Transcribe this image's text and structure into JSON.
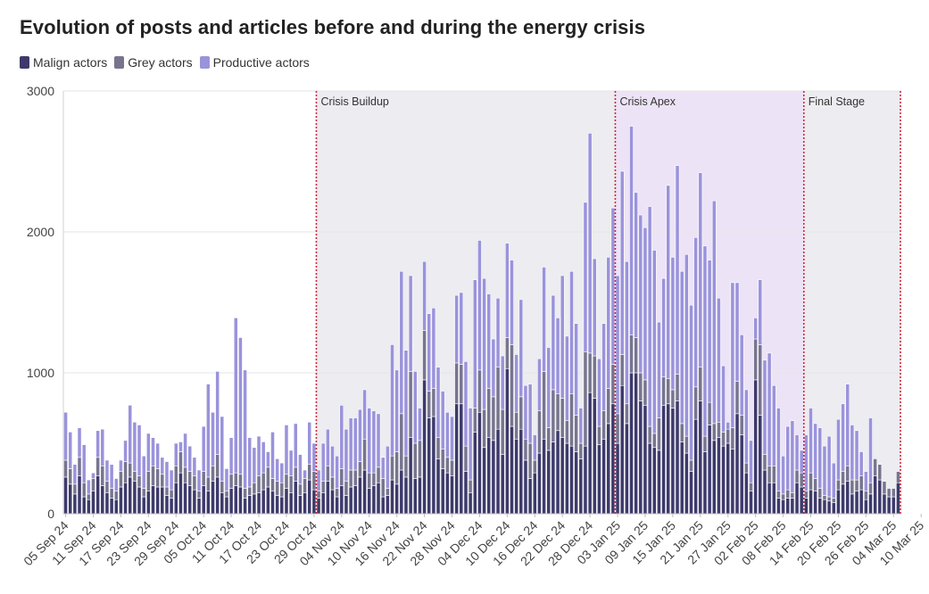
{
  "title": "Evolution of posts and articles before and during the energy crisis",
  "colors": {
    "malign": "#3d3a6b",
    "grey": "#77758e",
    "productive": "#9a93db",
    "phase_shade": "#ececf1",
    "apex_shade": "#ede3f6",
    "phase_line": "#d0293a",
    "grid": "#e6e6e6"
  },
  "chart_data": {
    "type": "bar",
    "stacked": true,
    "title": "Evolution of posts and articles before and during the energy crisis",
    "xlabel": "",
    "ylabel": "",
    "ylim": [
      0,
      3000
    ],
    "yticks": [
      "0",
      "1000",
      "2000",
      "3000"
    ],
    "grid": true,
    "legend": "top-left",
    "x_start": "2024-09-05",
    "x_tick_labels": [
      "05 Sep 24",
      "11 Sep 24",
      "17 Sep 24",
      "23 Sep 24",
      "29 Sep 24",
      "05 Oct 24",
      "11 Oct 24",
      "17 Oct 24",
      "23 Oct 24",
      "29 Oct 24",
      "04 Nov 24",
      "10 Nov 24",
      "16 Nov 24",
      "22 Nov 24",
      "28 Nov 24",
      "04 Dec 24",
      "10 Dec 24",
      "16 Dec 24",
      "22 Dec 24",
      "28 Dec 24",
      "03 Jan 25",
      "09 Jan 25",
      "15 Jan 25",
      "21 Jan 25",
      "27 Jan 25",
      "02 Feb 25",
      "08 Feb 25",
      "14 Feb 25",
      "20 Feb 25",
      "26 Feb 25",
      "04 Mar 25",
      "10 Mar 25"
    ],
    "phases": [
      {
        "label": "Crisis Buildup",
        "start": "30 Oct 24",
        "end": "03 Jan 25"
      },
      {
        "label": "Crisis Apex",
        "start": "03 Jan 25",
        "end": "13 Feb 25"
      },
      {
        "label": "Final Stage",
        "start": "13 Feb 25",
        "end": "10 Mar 25"
      }
    ],
    "series": [
      {
        "name": "Malign actors",
        "values": [
          260,
          210,
          140,
          270,
          120,
          100,
          160,
          270,
          200,
          150,
          110,
          100,
          190,
          220,
          260,
          230,
          190,
          120,
          160,
          200,
          190,
          190,
          130,
          110,
          220,
          290,
          220,
          200,
          170,
          110,
          200,
          160,
          230,
          260,
          150,
          120,
          180,
          200,
          190,
          110,
          130,
          140,
          150,
          170,
          190,
          160,
          130,
          120,
          180,
          150,
          230,
          130,
          150,
          240,
          170,
          110,
          150,
          230,
          170,
          120,
          200,
          130,
          190,
          200,
          260,
          310,
          180,
          200,
          220,
          120,
          130,
          240,
          210,
          310,
          260,
          540,
          250,
          260,
          950,
          680,
          690,
          390,
          320,
          290,
          270,
          780,
          780,
          300,
          150,
          580,
          720,
          470,
          540,
          520,
          600,
          420,
          1030,
          620,
          530,
          600,
          380,
          250,
          290,
          430,
          530,
          450,
          510,
          590,
          540,
          500,
          480,
          440,
          390,
          480,
          860,
          820,
          490,
          530,
          640,
          780,
          500,
          910,
          640,
          1000,
          1000,
          800,
          770,
          500,
          470,
          450,
          770,
          780,
          750,
          800,
          510,
          430,
          300,
          670,
          800,
          440,
          630,
          520,
          540,
          480,
          500,
          460,
          710,
          560,
          290,
          160,
          950,
          700,
          310,
          220,
          220,
          110,
          100,
          110,
          110,
          220,
          190,
          110,
          170,
          160,
          110,
          100,
          90,
          80,
          170,
          210,
          230,
          140,
          160,
          170,
          100,
          140,
          270,
          240,
          140,
          120,
          120,
          220
        ]
      },
      {
        "name": "Grey actors",
        "values": [
          120,
          110,
          70,
          130,
          100,
          40,
          90,
          130,
          140,
          80,
          70,
          60,
          110,
          150,
          100,
          70,
          80,
          60,
          140,
          140,
          130,
          90,
          60,
          60,
          120,
          150,
          110,
          100,
          100,
          50,
          100,
          100,
          110,
          160,
          80,
          40,
          100,
          90,
          90,
          70,
          60,
          80,
          120,
          120,
          140,
          90,
          100,
          100,
          100,
          120,
          100,
          80,
          100,
          110,
          130,
          50,
          80,
          110,
          90,
          60,
          120,
          100,
          120,
          110,
          110,
          220,
          110,
          90,
          110,
          130,
          50,
          170,
          230,
          400,
          150,
          470,
          250,
          260,
          350,
          190,
          200,
          150,
          140,
          110,
          110,
          290,
          280,
          180,
          90,
          170,
          300,
          270,
          350,
          310,
          440,
          320,
          220,
          580,
          190,
          230,
          150,
          250,
          90,
          300,
          480,
          160,
          370,
          260,
          280,
          160,
          370,
          260,
          110,
          670,
          280,
          300,
          130,
          200,
          250,
          280,
          210,
          220,
          140,
          270,
          250,
          200,
          180,
          120,
          100,
          230,
          200,
          180,
          130,
          190,
          130,
          120,
          80,
          230,
          240,
          110,
          160,
          120,
          110,
          100,
          100,
          150,
          230,
          140,
          70,
          60,
          290,
          500,
          110,
          120,
          120,
          50,
          40,
          60,
          40,
          90,
          100,
          50,
          120,
          90,
          70,
          30,
          30,
          30,
          70,
          90,
          110,
          100,
          80,
          100,
          60,
          80,
          120,
          110,
          90,
          60,
          60,
          80
        ]
      },
      {
        "name": "Productive actors",
        "values": [
          340,
          260,
          140,
          210,
          270,
          100,
          40,
          190,
          260,
          150,
          170,
          90,
          80,
          150,
          410,
          350,
          360,
          230,
          270,
          200,
          180,
          120,
          180,
          140,
          160,
          70,
          240,
          180,
          130,
          150,
          320,
          660,
          380,
          590,
          460,
          160,
          260,
          1100,
          970,
          840,
          350,
          250,
          280,
          220,
          110,
          330,
          160,
          140,
          350,
          180,
          310,
          210,
          60,
          300,
          200,
          150,
          270,
          260,
          220,
          230,
          450,
          370,
          370,
          370,
          370,
          350,
          460,
          440,
          380,
          150,
          300,
          790,
          580,
          1010,
          750,
          680,
          510,
          230,
          490,
          550,
          570,
          500,
          410,
          320,
          310,
          480,
          510,
          600,
          510,
          910,
          920,
          930,
          670,
          410,
          490,
          380,
          670,
          600,
          410,
          690,
          380,
          420,
          180,
          370,
          740,
          570,
          670,
          540,
          870,
          600,
          870,
          650,
          250,
          1060,
          1560,
          690,
          480,
          620,
          930,
          1110,
          980,
          1300,
          1010,
          1480,
          1030,
          1120,
          1080,
          1560,
          1300,
          680,
          700,
          1370,
          940,
          1480,
          1080,
          1290,
          1100,
          1060,
          1380,
          1350,
          1010,
          1580,
          880,
          470,
          50,
          1030,
          700,
          570,
          520,
          300,
          150,
          460,
          670,
          800,
          570,
          590,
          270,
          450,
          510,
          250,
          160,
          400,
          460,
          390,
          430,
          350,
          430,
          250,
          430,
          480,
          580,
          390,
          350,
          170,
          140,
          460
        ]
      }
    ]
  }
}
